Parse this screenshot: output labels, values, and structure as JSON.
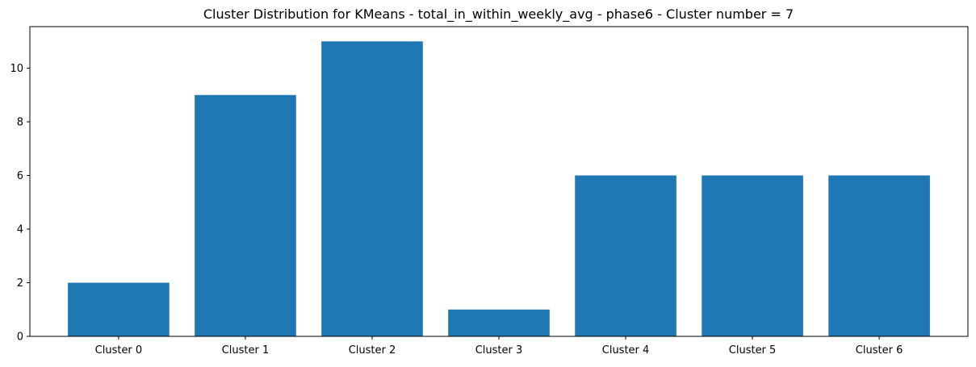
{
  "chart_data": {
    "type": "bar",
    "title": "Cluster Distribution for KMeans - total_in_within_weekly_avg - phase6 - Cluster number = 7",
    "xlabel": "",
    "ylabel": "",
    "categories": [
      "Cluster 0",
      "Cluster 1",
      "Cluster 2",
      "Cluster 3",
      "Cluster 4",
      "Cluster 5",
      "Cluster 6"
    ],
    "values": [
      2,
      9,
      11,
      1,
      6,
      6,
      6
    ],
    "ylim": [
      0,
      11.55
    ],
    "yticks": [
      0,
      2,
      4,
      6,
      8,
      10
    ],
    "grid": false,
    "bar_color": "#1f77b4"
  }
}
